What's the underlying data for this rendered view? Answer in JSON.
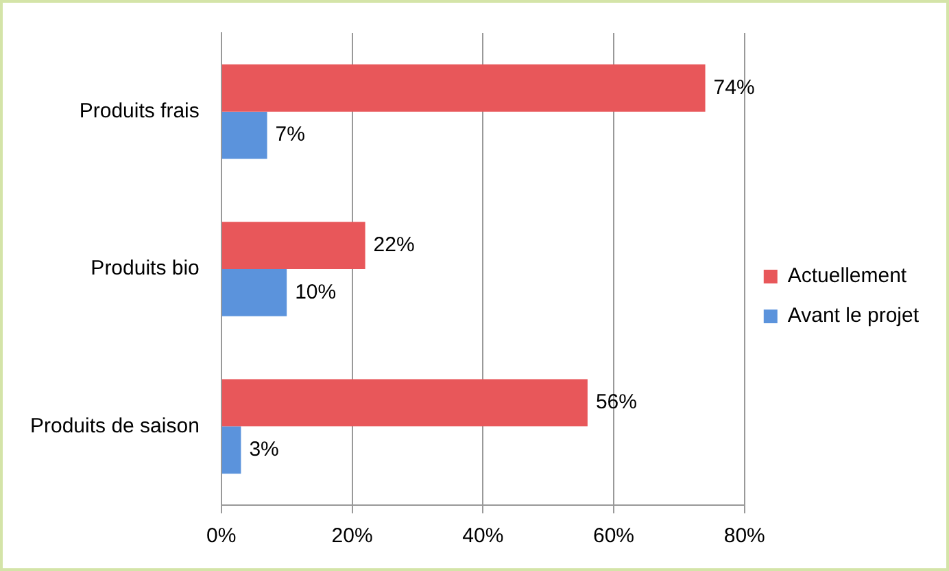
{
  "chart_data": {
    "type": "bar",
    "orientation": "horizontal",
    "categories": [
      "Produits frais",
      "Produits bio",
      "Produits de saison"
    ],
    "series": [
      {
        "name": "Actuellement",
        "color": "#e8575a",
        "values": [
          74,
          22,
          56
        ],
        "value_labels": [
          "74%",
          "22%",
          "56%"
        ]
      },
      {
        "name": "Avant le projet",
        "color": "#5b93dc",
        "values": [
          7,
          10,
          3
        ],
        "value_labels": [
          "7%",
          "10%",
          "3%"
        ]
      }
    ],
    "xlim": [
      0,
      80
    ],
    "xticks": [
      {
        "value": 0,
        "label": "0%"
      },
      {
        "value": 20,
        "label": "20%"
      },
      {
        "value": 40,
        "label": "40%"
      },
      {
        "value": 60,
        "label": "60%"
      },
      {
        "value": 80,
        "label": "80%"
      }
    ],
    "grid": "x",
    "legend": "right"
  }
}
